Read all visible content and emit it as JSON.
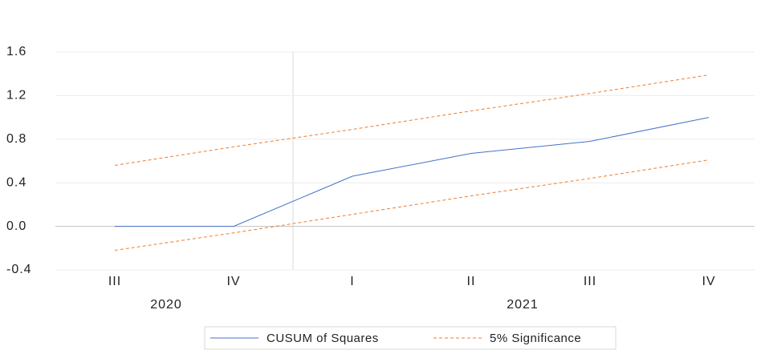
{
  "chart_data": {
    "type": "line",
    "groups": [
      {
        "label": "2020",
        "categories": [
          "III",
          "IV"
        ]
      },
      {
        "label": "2021",
        "categories": [
          "I",
          "II",
          "III",
          "IV"
        ]
      }
    ],
    "series": [
      {
        "name": "CUSUM of Squares",
        "color": "#4472c4",
        "dashed": false,
        "values": [
          0,
          0,
          0.46,
          0.67,
          0.78,
          1.0
        ]
      },
      {
        "name": "5% Significance",
        "color": "#ed7d31",
        "dashed": true,
        "values": [
          0.56,
          0.73,
          0.89,
          1.06,
          1.22,
          1.39
        ],
        "lower_values": [
          -0.22,
          -0.06,
          0.11,
          0.28,
          0.44,
          0.61
        ]
      }
    ],
    "ylim": [
      -0.4,
      1.6
    ],
    "yticks": [
      {
        "value": -0.4,
        "label": "-0.4"
      },
      {
        "value": 0,
        "label": "0.0"
      },
      {
        "value": 0.4,
        "label": "0.4"
      },
      {
        "value": 0.8,
        "label": "0.8"
      },
      {
        "value": 1.2,
        "label": "1.2"
      },
      {
        "value": 1.6,
        "label": "1.6"
      }
    ],
    "grid": true,
    "legend": "bottom"
  }
}
